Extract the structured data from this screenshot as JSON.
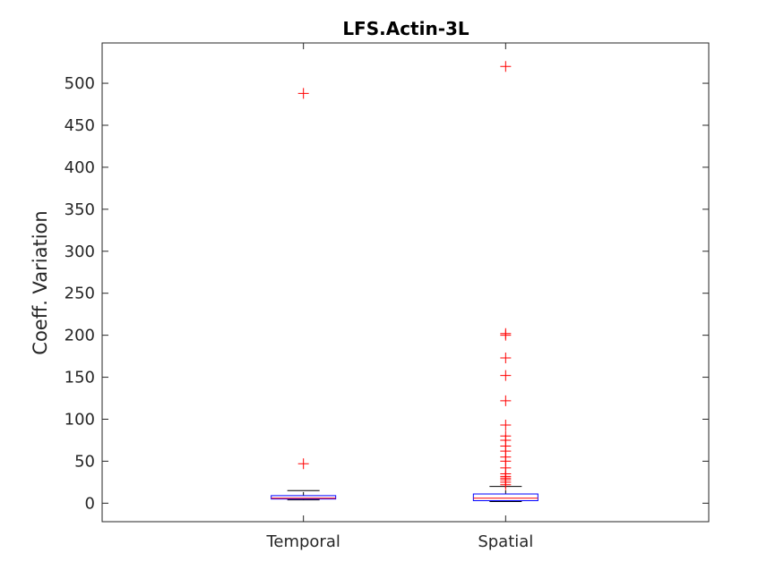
{
  "chart_data": {
    "type": "box",
    "title": "LFS.Actin-3L",
    "xlabel": "",
    "ylabel": "Coeff. Variation",
    "categories": [
      "Temporal",
      "Spatial"
    ],
    "ylim": [
      -22,
      548
    ],
    "yticks": [
      0,
      50,
      100,
      150,
      200,
      250,
      300,
      350,
      400,
      450,
      500
    ],
    "grid": false,
    "colors": {
      "box": "#0000ff",
      "median": "#ff0000",
      "whisker": "#000000",
      "outlier": "#ff0000",
      "axis": "#262626"
    },
    "boxes": [
      {
        "category": "Temporal",
        "whisker_low": 4,
        "q1": 5,
        "median": 6,
        "q3": 9,
        "whisker_high": 15,
        "outliers": [
          47,
          488
        ]
      },
      {
        "category": "Spatial",
        "whisker_low": 2,
        "q1": 3,
        "median": 6,
        "q3": 11,
        "whisker_high": 20,
        "outliers": [
          22,
          25,
          28,
          30,
          32,
          35,
          42,
          50,
          55,
          62,
          68,
          75,
          80,
          93,
          122,
          152,
          173,
          200,
          202,
          520
        ]
      }
    ]
  }
}
